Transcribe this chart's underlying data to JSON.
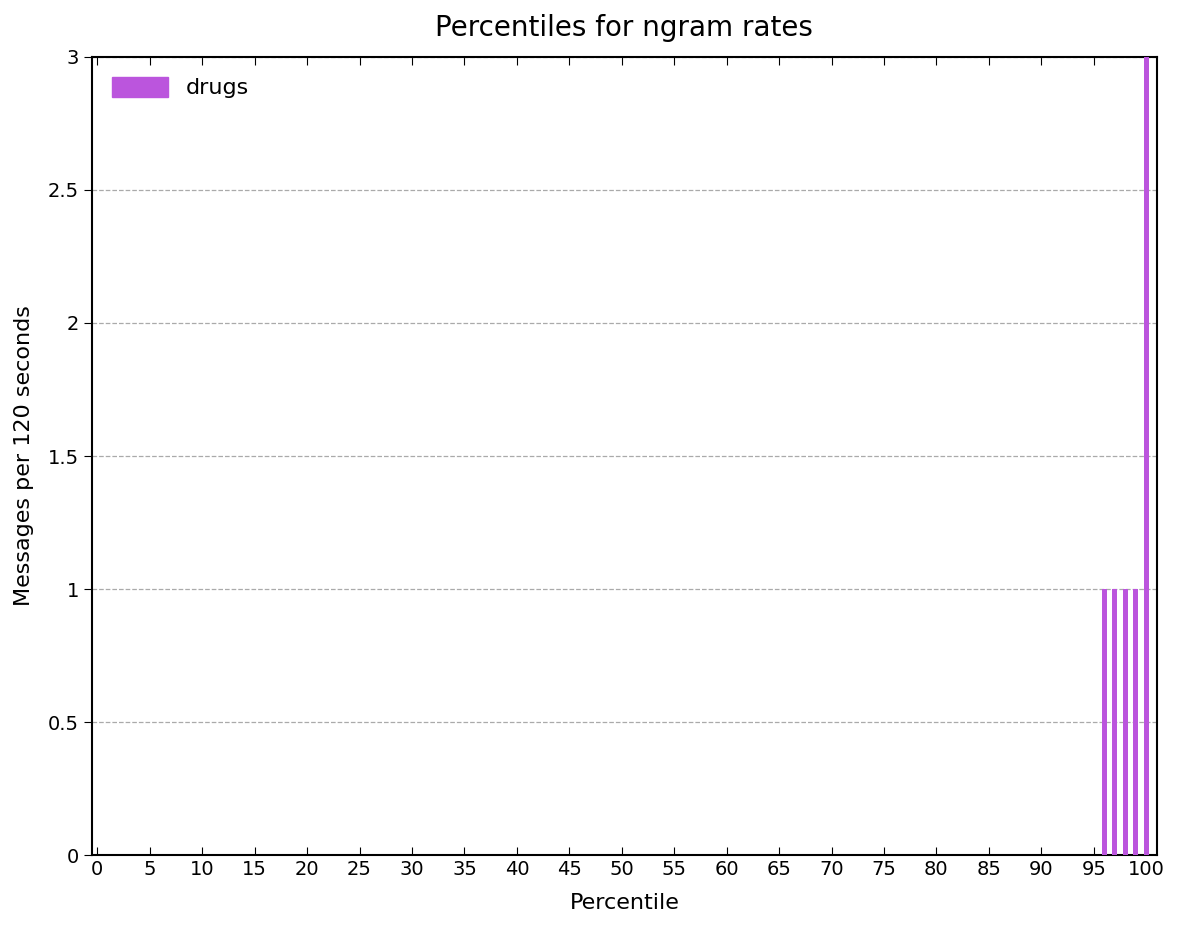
{
  "title": "Percentiles for ngram rates",
  "xlabel": "Percentile",
  "ylabel": "Messages per 120 seconds",
  "color": "#bb55dd",
  "legend_label": "drugs",
  "xlim": [
    -0.5,
    101
  ],
  "ylim": [
    0,
    3.0
  ],
  "yticks": [
    0,
    0.5,
    1.0,
    1.5,
    2.0,
    2.5,
    3.0
  ],
  "xticks": [
    0,
    5,
    10,
    15,
    20,
    25,
    30,
    35,
    40,
    45,
    50,
    55,
    60,
    65,
    70,
    75,
    80,
    85,
    90,
    95,
    100
  ],
  "percentile_values": [
    0,
    0,
    0,
    0,
    0,
    0,
    0,
    0,
    0,
    0,
    0,
    0,
    0,
    0,
    0,
    0,
    0,
    0,
    0,
    0,
    0,
    0,
    0,
    0,
    0,
    0,
    0,
    0,
    0,
    0,
    0,
    0,
    0,
    0,
    0,
    0,
    0,
    0,
    0,
    0,
    0,
    0,
    0,
    0,
    0,
    0,
    0,
    0,
    0,
    0,
    0,
    0,
    0,
    0,
    0,
    0,
    0,
    0,
    0,
    0,
    0,
    0,
    0,
    0,
    0,
    0,
    0,
    0,
    0,
    0,
    0,
    0,
    0,
    0,
    0,
    0,
    0,
    0,
    0,
    0,
    0,
    0,
    0,
    0,
    0,
    0,
    0,
    0,
    0,
    0,
    0,
    0,
    0,
    0,
    0,
    0,
    1,
    1,
    1,
    1,
    3
  ],
  "title_fontsize": 20,
  "label_fontsize": 16,
  "tick_fontsize": 14,
  "legend_fontsize": 16,
  "background_color": "#ffffff",
  "grid_color": "#aaaaaa",
  "bar_width": 0.5,
  "figsize": [
    11.8,
    9.27
  ],
  "dpi": 100
}
